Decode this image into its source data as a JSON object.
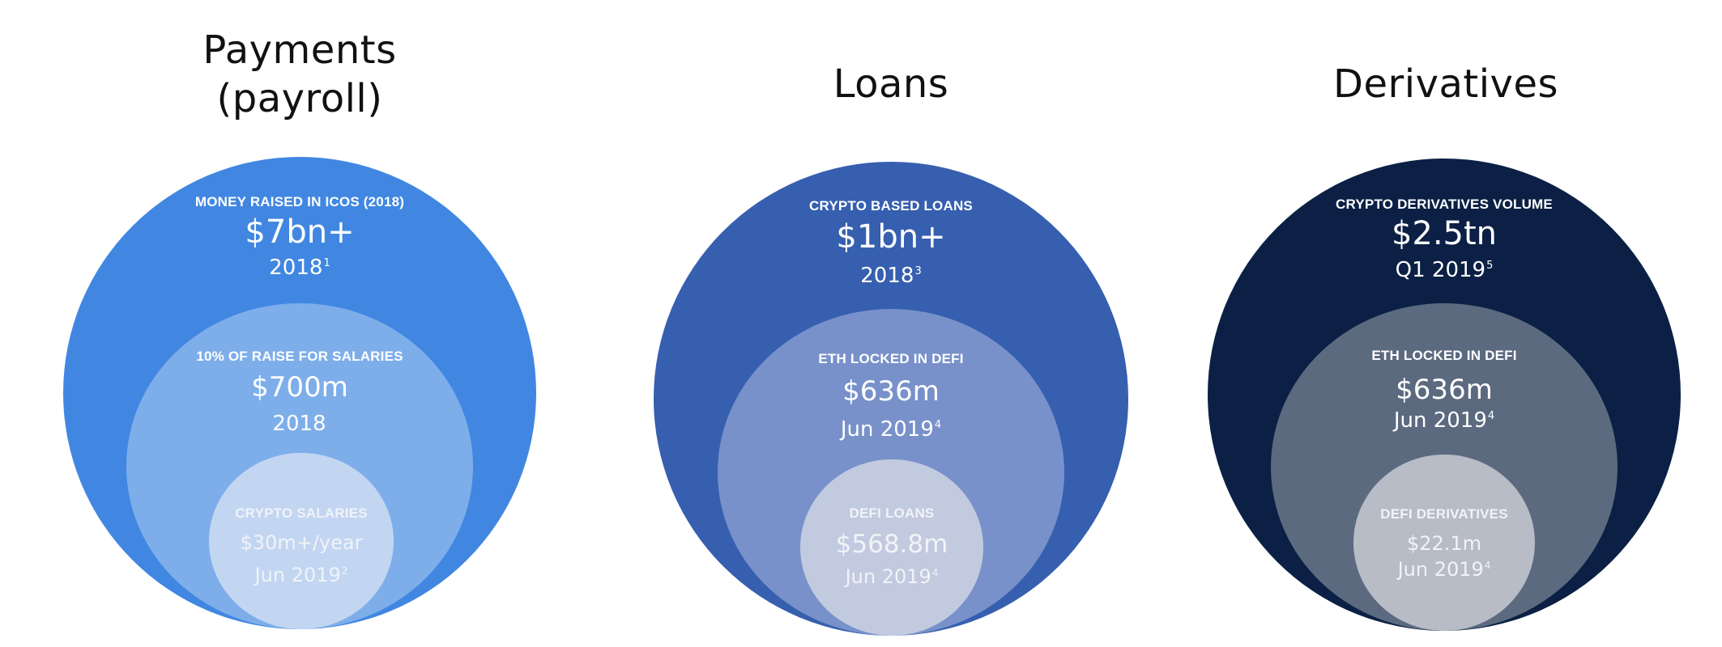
{
  "colors": {
    "payments_outer": "#4187e2",
    "payments_mid": "#7eaeea",
    "payments_inner": "#c2d6f2",
    "loans_outer": "#365faf",
    "loans_mid": "#7891ca",
    "loans_inner": "#c2cae0",
    "derivatives_outer": "#0b2044",
    "derivatives_mid": "#5c6a80",
    "derivatives_inner": "#b7bcc6"
  },
  "panels": [
    {
      "title_lines": [
        "Payments",
        "(payroll)"
      ],
      "outer": {
        "caption": "MONEY RAISED IN ICOS (2018)",
        "value": "$7bn+",
        "date": "2018",
        "footnote": "1"
      },
      "middle": {
        "caption": "10% OF RAISE FOR SALARIES",
        "value": "$700m",
        "date": "2018",
        "footnote": ""
      },
      "inner": {
        "caption": "CRYPTO SALARIES",
        "value": "$30m+/year",
        "date": "Jun 2019",
        "footnote": "2"
      }
    },
    {
      "title_lines": [
        "Loans"
      ],
      "outer": {
        "caption": "CRYPTO BASED LOANS",
        "value": "$1bn+",
        "date": "2018",
        "footnote": "3"
      },
      "middle": {
        "caption": "ETH LOCKED IN DEFI",
        "value": "$636m",
        "date": "Jun 2019",
        "footnote": "4"
      },
      "inner": {
        "caption": "DEFI LOANS",
        "value": "$568.8m",
        "date": "Jun 2019",
        "footnote": "4"
      }
    },
    {
      "title_lines": [
        "Derivatives"
      ],
      "outer": {
        "caption": "CRYPTO DERIVATIVES VOLUME",
        "value": "$2.5tn",
        "date": "Q1 2019",
        "footnote": "5"
      },
      "middle": {
        "caption": "ETH LOCKED IN DEFI",
        "value": "$636m",
        "date": "Jun 2019",
        "footnote": "4"
      },
      "inner": {
        "caption": "DEFI DERIVATIVES",
        "value": "$22.1m",
        "date": "Jun 2019",
        "footnote": "4"
      }
    }
  ]
}
